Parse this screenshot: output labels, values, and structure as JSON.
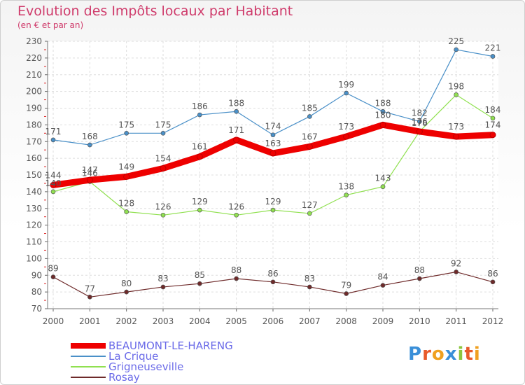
{
  "title": "Evolution des Impôts locaux par Habitant",
  "subtitle": "(en € et par an)",
  "logo": {
    "text": "Proxiti",
    "letters": [
      {
        "ch": "P",
        "color": "#3a8fd8"
      },
      {
        "ch": "r",
        "color": "#e85a2a"
      },
      {
        "ch": "o",
        "color": "#f0a020"
      },
      {
        "ch": "x",
        "color": "#3a8fd8"
      },
      {
        "ch": "i",
        "color": "#8cc63f"
      },
      {
        "ch": "t",
        "color": "#e85a2a"
      },
      {
        "ch": "i",
        "color": "#f0a020"
      }
    ]
  },
  "chart_data": {
    "type": "line",
    "x": [
      2000,
      2001,
      2002,
      2003,
      2004,
      2005,
      2006,
      2007,
      2008,
      2009,
      2010,
      2011,
      2012
    ],
    "ylim": [
      70,
      230
    ],
    "yticks": [
      70,
      80,
      90,
      100,
      110,
      120,
      130,
      140,
      150,
      160,
      170,
      180,
      190,
      200,
      210,
      220,
      230
    ],
    "grid": true,
    "legend": "bottom-left",
    "series": [
      {
        "name": "La Crique",
        "color": "#4a90c8",
        "width": 1,
        "values": [
          171,
          168,
          175,
          175,
          186,
          188,
          174,
          185,
          199,
          188,
          182,
          225,
          221
        ],
        "label_pos": "above"
      },
      {
        "name": "Grigneuseville",
        "color": "#90e050",
        "width": 1,
        "values": [
          140,
          146,
          128,
          126,
          129,
          126,
          129,
          127,
          138,
          143,
          176,
          198,
          184
        ],
        "label_pos": "above"
      },
      {
        "name": "Rosay",
        "color": "#6e2a2a",
        "width": 1,
        "values": [
          89,
          77,
          80,
          83,
          85,
          88,
          86,
          83,
          79,
          84,
          88,
          92,
          86
        ],
        "label_pos": "above"
      },
      {
        "name": "BEAUMONT-LE-HARENG",
        "color": "#ee0000",
        "width": 9,
        "values": [
          144,
          147,
          149,
          154,
          161,
          171,
          163,
          167,
          173,
          180,
          176,
          173,
          174
        ],
        "label_pos": "above"
      }
    ],
    "legend_order": [
      "BEAUMONT-LE-HARENG",
      "La Crique",
      "Grigneuseville",
      "Rosay"
    ]
  }
}
